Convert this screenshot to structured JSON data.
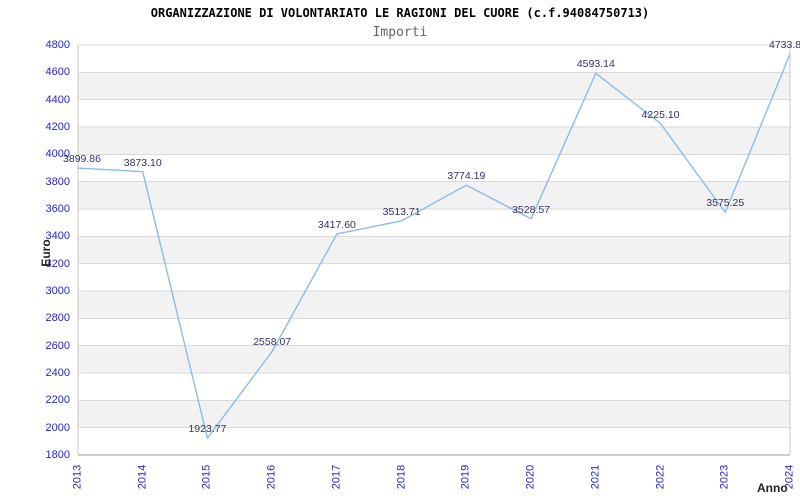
{
  "chart_data": {
    "type": "line",
    "title": "ORGANIZZAZIONE DI VOLONTARIATO LE RAGIONI DEL CUORE (c.f.94084750713)",
    "subtitle": "Importi",
    "xlabel": "Anno",
    "ylabel": "Euro",
    "categories": [
      "2013",
      "2014",
      "2015",
      "2016",
      "2017",
      "2018",
      "2019",
      "2020",
      "2021",
      "2022",
      "2023",
      "2024"
    ],
    "series": [
      {
        "name": "Importi",
        "values": [
          3899.86,
          3873.1,
          1923.77,
          2558.07,
          3417.6,
          3513.71,
          3774.19,
          3528.57,
          4593.14,
          4225.1,
          3575.25,
          4733.8
        ],
        "point_labels": [
          "3899.86",
          "3873.10",
          "1923.77",
          "2558.07",
          "3417.60",
          "3513.71",
          "3774.19",
          "3528.57",
          "4593.14",
          "4225.10",
          "3575.25",
          "4733.8"
        ]
      }
    ],
    "ylim": [
      1800,
      4800
    ],
    "ytick_step": 200,
    "grid": "horizontal-banded",
    "legend": "none",
    "colors": {
      "line": "#8cbbe8",
      "tick_label": "#2525cc",
      "point_label": "#333366",
      "band": "#f2f2f2",
      "gridline": "#d9d9d9",
      "axis_bottom": "#999999",
      "plot_border": "#c8c8c8",
      "title": "#000000",
      "subtitle": "#666666",
      "axis_title": "#222222"
    }
  }
}
